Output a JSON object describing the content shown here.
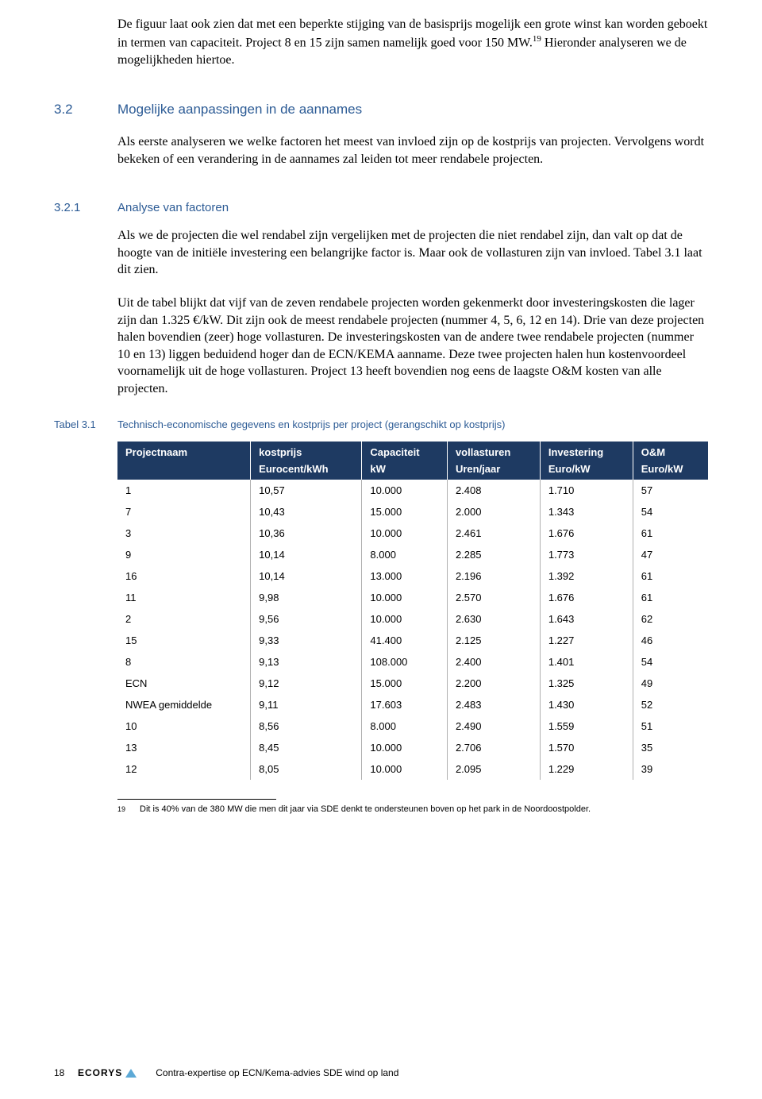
{
  "intro": {
    "p1a": "De figuur laat ook zien dat met een beperkte stijging van de basisprijs mogelijk een grote winst kan worden geboekt in termen van capaciteit. Project 8 en 15 zijn samen namelijk goed voor 150 MW.",
    "p1_sup": "19",
    "p1b": " Hieronder analyseren we de mogelijkheden hiertoe."
  },
  "section32": {
    "num": "3.2",
    "title": "Mogelijke aanpassingen in de aannames",
    "para": "Als eerste analyseren we welke factoren het meest van invloed zijn op de kostprijs van projecten. Vervolgens wordt bekeken of een verandering in de aannames zal leiden tot meer rendabele projecten."
  },
  "section321": {
    "num": "3.2.1",
    "title": "Analyse van factoren",
    "p1": "Als we de projecten die wel rendabel zijn vergelijken met de projecten die niet rendabel zijn, dan valt op dat de hoogte van de initiële investering een belangrijke factor is. Maar ook de vollasturen zijn van invloed. Tabel 3.1 laat dit zien.",
    "p2": "Uit de tabel blijkt dat vijf van de zeven rendabele projecten worden gekenmerkt door investeringskosten die lager zijn dan 1.325 €/kW. Dit zijn ook de meest rendabele projecten (nummer 4, 5, 6, 12 en 14). Drie van deze projecten halen bovendien (zeer) hoge vollasturen. De investeringskosten van de andere twee rendabele projecten (nummer 10 en 13) liggen beduidend hoger dan de ECN/KEMA aanname. Deze twee projecten halen hun kostenvoordeel voornamelijk uit de hoge vollasturen. Project 13 heeft bovendien nog eens de laagste O&M kosten van alle projecten."
  },
  "table": {
    "caption_num": "Tabel 3.1",
    "caption_text": "Technisch-economische gegevens en kostprijs per project (gerangschikt op kostprijs)",
    "headers": [
      "Projectnaam",
      "kostprijs",
      "Capaciteit",
      "vollasturen",
      "Investering",
      "O&M"
    ],
    "units": [
      "",
      "Eurocent/kWh",
      "kW",
      "Uren/jaar",
      "Euro/kW",
      "Euro/kW"
    ],
    "rows": [
      [
        "1",
        "10,57",
        "10.000",
        "2.408",
        "1.710",
        "57"
      ],
      [
        "7",
        "10,43",
        "15.000",
        "2.000",
        "1.343",
        "54"
      ],
      [
        "3",
        "10,36",
        "10.000",
        "2.461",
        "1.676",
        "61"
      ],
      [
        "9",
        "10,14",
        "8.000",
        "2.285",
        "1.773",
        "47"
      ],
      [
        "16",
        "10,14",
        "13.000",
        "2.196",
        "1.392",
        "61"
      ],
      [
        "11",
        "9,98",
        "10.000",
        "2.570",
        "1.676",
        "61"
      ],
      [
        "2",
        "9,56",
        "10.000",
        "2.630",
        "1.643",
        "62"
      ],
      [
        "15",
        "9,33",
        "41.400",
        "2.125",
        "1.227",
        "46"
      ],
      [
        "8",
        "9,13",
        "108.000",
        "2.400",
        "1.401",
        "54"
      ],
      [
        "ECN",
        "9,12",
        "15.000",
        "2.200",
        "1.325",
        "49"
      ],
      [
        "NWEA gemiddelde",
        "9,11",
        "17.603",
        "2.483",
        "1.430",
        "52"
      ],
      [
        "10",
        "8,56",
        "8.000",
        "2.490",
        "1.559",
        "51"
      ],
      [
        "13",
        "8,45",
        "10.000",
        "2.706",
        "1.570",
        "35"
      ],
      [
        "12",
        "8,05",
        "10.000",
        "2.095",
        "1.229",
        "39"
      ]
    ]
  },
  "footnote": {
    "num": "19",
    "text": "Dit is 40% van de 380 MW die men dit jaar via SDE denkt te ondersteunen boven op het park in de Noordoostpolder."
  },
  "footer": {
    "page": "18",
    "logo": "ECORYS",
    "title": "Contra-expertise op ECN/Kema-advies SDE wind op land"
  }
}
